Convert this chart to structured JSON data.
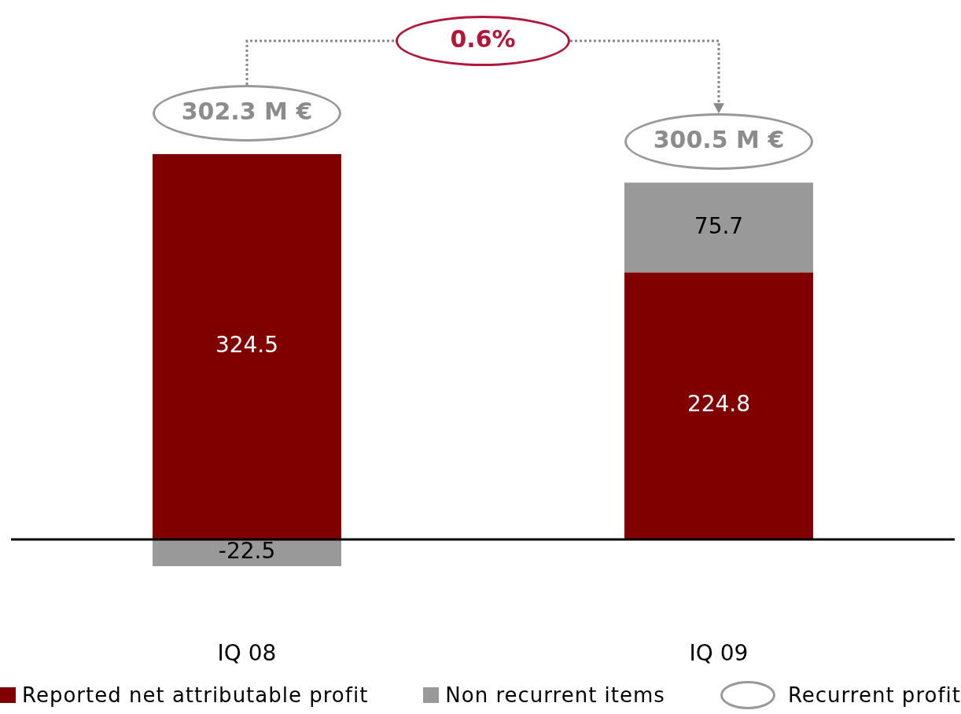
{
  "chart_data": {
    "type": "bar",
    "stacked": true,
    "categories": [
      "IQ 08",
      "IQ 09"
    ],
    "series": [
      {
        "name": "Reported net attributable profit",
        "color": "#800000",
        "values": [
          324.5,
          224.8
        ]
      },
      {
        "name": "Non recurrent items",
        "color": "#999999",
        "values": [
          -22.5,
          75.7
        ]
      }
    ],
    "data_labels": true,
    "annotations": [
      "0.6%",
      "302.3 M €",
      "300.5 M €",
      "Recurrent profit"
    ],
    "legend": "bottom"
  }
}
